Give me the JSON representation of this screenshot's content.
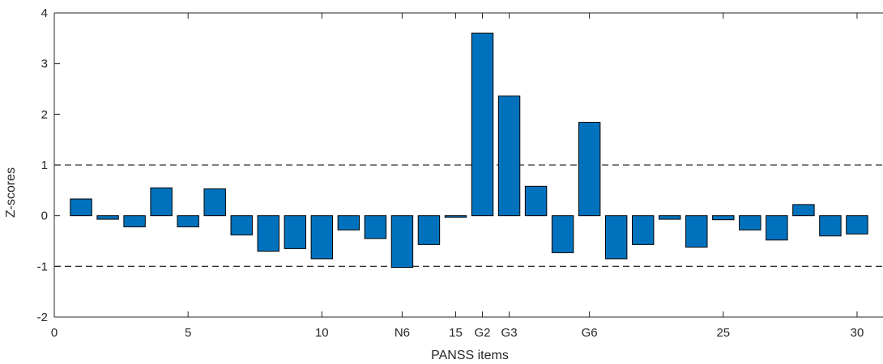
{
  "chart_data": {
    "type": "bar",
    "xlabel": "PANSS items",
    "ylabel": "Z-scores",
    "xlim": [
      0,
      31
    ],
    "ylim": [
      -2,
      4
    ],
    "yticks": [
      -2,
      -1,
      0,
      1,
      2,
      3,
      4
    ],
    "xticks": [
      {
        "x": 0,
        "label": "0"
      },
      {
        "x": 5,
        "label": "5"
      },
      {
        "x": 10,
        "label": "10"
      },
      {
        "x": 13,
        "label": "N6"
      },
      {
        "x": 15,
        "label": "15"
      },
      {
        "x": 16,
        "label": "G2"
      },
      {
        "x": 17,
        "label": "G3"
      },
      {
        "x": 20,
        "label": "G6"
      },
      {
        "x": 25,
        "label": "25"
      },
      {
        "x": 30,
        "label": "30"
      }
    ],
    "reference_lines": [
      1,
      -1
    ],
    "x": [
      1,
      2,
      3,
      4,
      5,
      6,
      7,
      8,
      9,
      10,
      11,
      12,
      13,
      14,
      15,
      16,
      17,
      18,
      19,
      20,
      21,
      22,
      23,
      24,
      25,
      26,
      27,
      28,
      29,
      30
    ],
    "values": [
      0.33,
      -0.07,
      -0.22,
      0.55,
      -0.22,
      0.53,
      -0.38,
      -0.7,
      -0.65,
      -0.85,
      -0.28,
      -0.45,
      -1.02,
      -0.57,
      -0.03,
      3.6,
      2.36,
      0.58,
      -0.73,
      1.84,
      -0.85,
      -0.57,
      -0.07,
      -0.62,
      -0.08,
      -0.28,
      -0.48,
      0.22,
      -0.4,
      -0.36
    ],
    "bar_color": "#0072BD",
    "edge_color": "#000000",
    "grid": false
  }
}
